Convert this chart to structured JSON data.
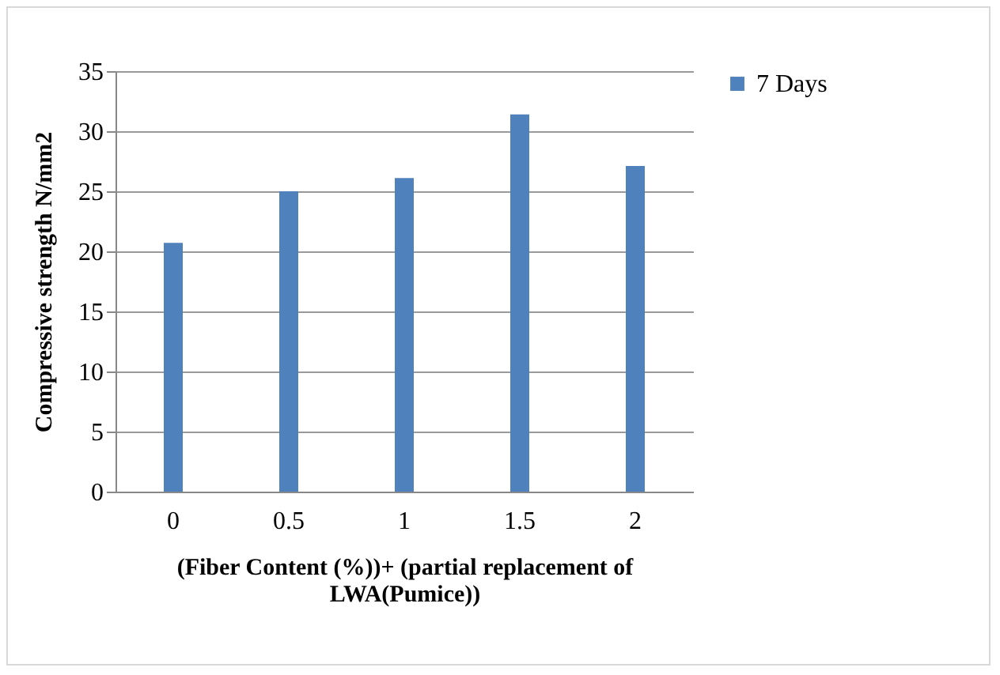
{
  "chart_data": {
    "type": "bar",
    "xlabel": "(Fiber Content (%))+ (partial replacement of LWA(Pumice))",
    "ylabel": "Compressive strength N/mm2",
    "categories": [
      "0",
      "0.5",
      "1",
      "1.5",
      "2"
    ],
    "series": [
      {
        "name": "7 Days",
        "color": "#4f81bd",
        "values": [
          20.7,
          25.0,
          26.1,
          31.4,
          27.1
        ]
      }
    ],
    "ylim": [
      0,
      35
    ],
    "yticks": [
      0,
      5,
      10,
      15,
      20,
      25,
      30,
      35
    ],
    "grid": "y",
    "legend": "right"
  }
}
